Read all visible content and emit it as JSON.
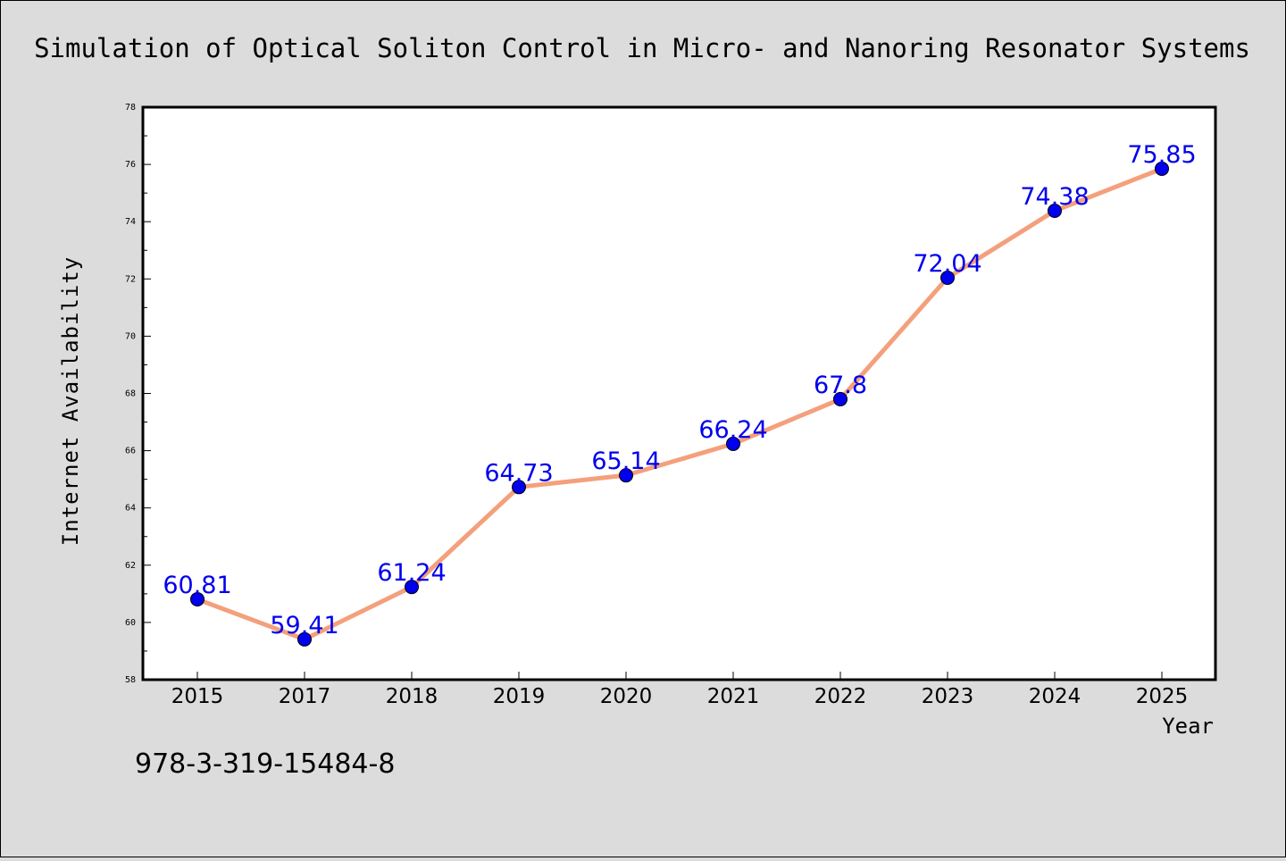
{
  "chart_data": {
    "type": "line",
    "title": "Simulation of Optical Soliton Control in Micro- and Nanoring Resonator Systems",
    "xlabel": "Year",
    "ylabel": "Internet Availability",
    "categories": [
      "2015",
      "2017",
      "2018",
      "2019",
      "2020",
      "2021",
      "2022",
      "2023",
      "2024",
      "2025"
    ],
    "values": [
      60.81,
      59.41,
      61.24,
      64.73,
      65.14,
      66.24,
      67.8,
      72.04,
      74.38,
      75.85
    ],
    "data_labels": [
      "60.81",
      "59.41",
      "61.24",
      "64.73",
      "65.14",
      "66.24",
      "67.8",
      "72.04",
      "74.38",
      "75.85"
    ],
    "ylim": [
      58,
      78
    ],
    "yticks": [
      "58",
      "60",
      "62",
      "64",
      "66",
      "68",
      "70",
      "72",
      "74",
      "76",
      "78"
    ],
    "grid": false,
    "line_color": "#f4a07c",
    "marker_color": "#0000ee",
    "label_color": "#0000ee"
  },
  "footnote": "978-3-319-15484-8"
}
